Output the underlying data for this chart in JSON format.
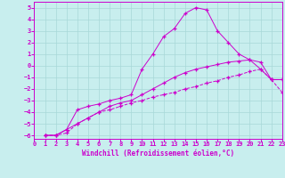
{
  "xlabel": "Windchill (Refroidissement éolien,°C)",
  "background_color": "#c8eeee",
  "line_color": "#cc00cc",
  "xlim": [
    0,
    23
  ],
  "ylim": [
    -6.3,
    5.5
  ],
  "xticks": [
    0,
    1,
    2,
    3,
    4,
    5,
    6,
    7,
    8,
    9,
    10,
    11,
    12,
    13,
    14,
    15,
    16,
    17,
    18,
    19,
    20,
    21,
    22,
    23
  ],
  "yticks": [
    -6,
    -5,
    -4,
    -3,
    -2,
    -1,
    0,
    1,
    2,
    3,
    4,
    5
  ],
  "line1_x": [
    1,
    2,
    3,
    4,
    5,
    6,
    7,
    8,
    9,
    10,
    11,
    12,
    13,
    14,
    15,
    16,
    17,
    18,
    19,
    20,
    21,
    22,
    23
  ],
  "line1_y": [
    -6.0,
    -6.0,
    -5.5,
    -5.0,
    -4.5,
    -4.0,
    -3.5,
    -3.2,
    -3.0,
    -2.5,
    -2.0,
    -1.5,
    -1.0,
    -0.6,
    -0.3,
    -0.1,
    0.1,
    0.3,
    0.4,
    0.5,
    0.3,
    -1.2,
    -1.2
  ],
  "line2_x": [
    1,
    2,
    3,
    4,
    5,
    6,
    7,
    8,
    9,
    10,
    11,
    12,
    13,
    14,
    15,
    16,
    17,
    18,
    19,
    20,
    21,
    22,
    23
  ],
  "line2_y": [
    -6.0,
    -6.0,
    -5.8,
    -5.0,
    -4.5,
    -4.0,
    -3.8,
    -3.5,
    -3.2,
    -3.0,
    -2.7,
    -2.5,
    -2.3,
    -2.0,
    -1.8,
    -1.5,
    -1.3,
    -1.0,
    -0.8,
    -0.5,
    -0.3,
    -1.2,
    -2.3
  ],
  "line3_x": [
    1,
    2,
    3,
    4,
    5,
    6,
    7,
    8,
    9,
    10,
    11,
    12,
    13,
    14,
    15,
    16,
    17,
    18,
    19,
    20,
    21,
    22,
    23
  ],
  "line3_y": [
    -6.0,
    -6.0,
    -5.5,
    -3.8,
    -3.5,
    -3.3,
    -3.0,
    -2.8,
    -2.5,
    -0.3,
    1.0,
    2.5,
    3.2,
    4.5,
    5.0,
    4.8,
    3.0,
    2.0,
    1.0,
    0.5,
    -0.3,
    -1.2,
    -1.2
  ],
  "line1_style": "solid",
  "line2_style": "dashed",
  "line3_style": "solid",
  "grid_color": "#a8d8d8",
  "tick_labelsize": 5,
  "xlabel_fontsize": 5.5,
  "linewidth": 0.7,
  "markersize": 3.5,
  "markeredgewidth": 0.9
}
